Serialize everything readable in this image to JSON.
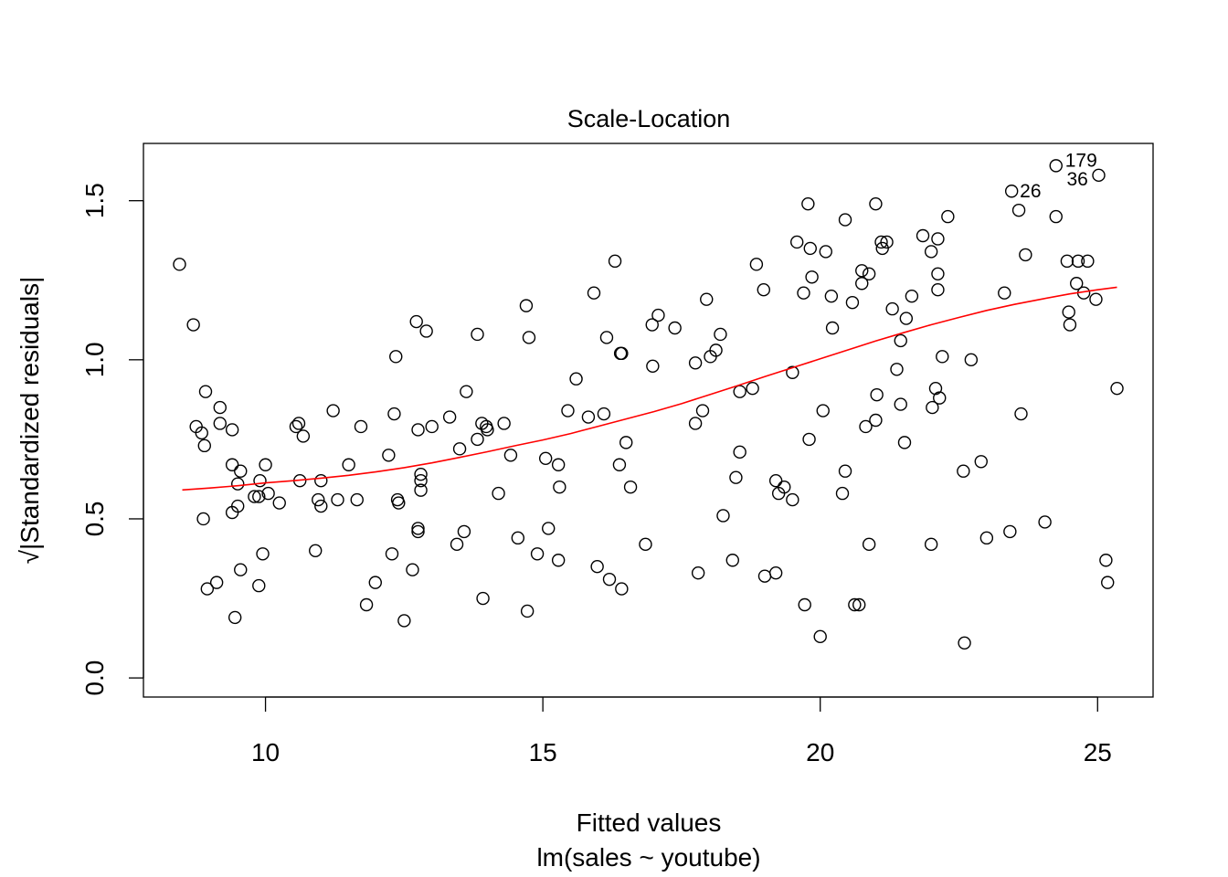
{
  "chart_data": {
    "type": "scatter",
    "title": "Scale-Location",
    "xlabel": "Fitted values",
    "xsublabel": "lm(sales ~ youtube)",
    "ylabel": "√|Standardized residuals|",
    "xlim": [
      7.8,
      26.0
    ],
    "ylim": [
      -0.06,
      1.68
    ],
    "xticks": [
      10,
      15,
      20,
      25
    ],
    "yticks": [
      0.0,
      0.5,
      1.0,
      1.5
    ],
    "xtick_labels": [
      "10",
      "15",
      "20",
      "25"
    ],
    "ytick_labels": [
      "0.0",
      "0.5",
      "1.0",
      "1.5"
    ],
    "grid": false,
    "points_color": "#000000",
    "smooth_color": "#ff0000",
    "points": [
      [
        8.45,
        1.3
      ],
      [
        8.7,
        1.11
      ],
      [
        8.75,
        0.79
      ],
      [
        8.85,
        0.77
      ],
      [
        8.88,
        0.5
      ],
      [
        8.9,
        0.73
      ],
      [
        8.92,
        0.9
      ],
      [
        8.95,
        0.28
      ],
      [
        9.12,
        0.3
      ],
      [
        9.18,
        0.85
      ],
      [
        9.18,
        0.8
      ],
      [
        9.4,
        0.78
      ],
      [
        9.4,
        0.67
      ],
      [
        9.4,
        0.52
      ],
      [
        9.45,
        0.19
      ],
      [
        9.5,
        0.61
      ],
      [
        9.5,
        0.54
      ],
      [
        9.55,
        0.65
      ],
      [
        9.55,
        0.34
      ],
      [
        9.8,
        0.57
      ],
      [
        9.88,
        0.57
      ],
      [
        9.88,
        0.29
      ],
      [
        9.9,
        0.62
      ],
      [
        9.95,
        0.39
      ],
      [
        10.0,
        0.67
      ],
      [
        10.05,
        0.58
      ],
      [
        10.25,
        0.55
      ],
      [
        10.55,
        0.79
      ],
      [
        10.6,
        0.8
      ],
      [
        10.62,
        0.62
      ],
      [
        10.68,
        0.76
      ],
      [
        10.9,
        0.4
      ],
      [
        10.95,
        0.56
      ],
      [
        11.0,
        0.62
      ],
      [
        11.0,
        0.54
      ],
      [
        11.22,
        0.84
      ],
      [
        11.3,
        0.56
      ],
      [
        11.5,
        0.67
      ],
      [
        11.65,
        0.56
      ],
      [
        11.72,
        0.79
      ],
      [
        11.82,
        0.23
      ],
      [
        11.98,
        0.3
      ],
      [
        12.22,
        0.7
      ],
      [
        12.28,
        0.39
      ],
      [
        12.32,
        0.83
      ],
      [
        12.35,
        1.01
      ],
      [
        12.38,
        0.56
      ],
      [
        12.4,
        0.55
      ],
      [
        12.5,
        0.18
      ],
      [
        12.65,
        0.34
      ],
      [
        12.72,
        1.12
      ],
      [
        12.75,
        0.78
      ],
      [
        12.75,
        0.47
      ],
      [
        12.75,
        0.46
      ],
      [
        12.8,
        0.64
      ],
      [
        12.8,
        0.62
      ],
      [
        12.8,
        0.59
      ],
      [
        12.9,
        1.09
      ],
      [
        13.0,
        0.79
      ],
      [
        13.32,
        0.82
      ],
      [
        13.45,
        0.42
      ],
      [
        13.5,
        0.72
      ],
      [
        13.58,
        0.46
      ],
      [
        13.62,
        0.9
      ],
      [
        13.82,
        1.08
      ],
      [
        13.82,
        0.75
      ],
      [
        13.9,
        0.8
      ],
      [
        13.92,
        0.25
      ],
      [
        13.98,
        0.79
      ],
      [
        14.0,
        0.78
      ],
      [
        14.2,
        0.58
      ],
      [
        14.3,
        0.8
      ],
      [
        14.42,
        0.7
      ],
      [
        14.55,
        0.44
      ],
      [
        14.7,
        1.17
      ],
      [
        14.72,
        0.21
      ],
      [
        14.75,
        1.07
      ],
      [
        14.9,
        0.39
      ],
      [
        15.05,
        0.69
      ],
      [
        15.1,
        0.47
      ],
      [
        15.28,
        0.37
      ],
      [
        15.28,
        0.67
      ],
      [
        15.3,
        0.6
      ],
      [
        15.45,
        0.84
      ],
      [
        15.6,
        0.94
      ],
      [
        15.82,
        0.82
      ],
      [
        15.92,
        1.21
      ],
      [
        15.98,
        0.35
      ],
      [
        16.1,
        0.83
      ],
      [
        16.15,
        1.07
      ],
      [
        16.2,
        0.31
      ],
      [
        16.3,
        1.31
      ],
      [
        16.38,
        0.67
      ],
      [
        16.4,
        1.02
      ],
      [
        16.42,
        1.02
      ],
      [
        16.42,
        0.28
      ],
      [
        16.5,
        0.74
      ],
      [
        16.58,
        0.6
      ],
      [
        16.85,
        0.42
      ],
      [
        16.97,
        1.11
      ],
      [
        16.98,
        0.98
      ],
      [
        17.08,
        1.14
      ],
      [
        17.38,
        1.1
      ],
      [
        17.75,
        0.99
      ],
      [
        17.75,
        0.8
      ],
      [
        17.8,
        0.33
      ],
      [
        17.88,
        0.84
      ],
      [
        17.95,
        1.19
      ],
      [
        18.02,
        1.01
      ],
      [
        18.12,
        1.03
      ],
      [
        18.2,
        1.08
      ],
      [
        18.25,
        0.51
      ],
      [
        18.42,
        0.37
      ],
      [
        18.48,
        0.63
      ],
      [
        18.55,
        0.9
      ],
      [
        18.55,
        0.71
      ],
      [
        18.78,
        0.91
      ],
      [
        18.85,
        1.3
      ],
      [
        18.98,
        1.22
      ],
      [
        19.0,
        0.32
      ],
      [
        19.2,
        0.62
      ],
      [
        19.2,
        0.33
      ],
      [
        19.25,
        0.58
      ],
      [
        19.35,
        0.6
      ],
      [
        19.5,
        0.96
      ],
      [
        19.5,
        0.56
      ],
      [
        19.58,
        1.37
      ],
      [
        19.7,
        1.21
      ],
      [
        19.72,
        0.23
      ],
      [
        19.78,
        1.49
      ],
      [
        19.8,
        0.75
      ],
      [
        19.82,
        1.35
      ],
      [
        19.85,
        1.26
      ],
      [
        20.0,
        0.13
      ],
      [
        20.05,
        0.84
      ],
      [
        20.1,
        1.34
      ],
      [
        20.2,
        1.2
      ],
      [
        20.22,
        1.1
      ],
      [
        20.4,
        0.58
      ],
      [
        20.45,
        1.44
      ],
      [
        20.45,
        0.65
      ],
      [
        20.58,
        1.18
      ],
      [
        20.62,
        0.23
      ],
      [
        20.7,
        0.23
      ],
      [
        20.75,
        1.28
      ],
      [
        20.75,
        1.24
      ],
      [
        20.82,
        0.79
      ],
      [
        20.88,
        1.27
      ],
      [
        20.88,
        0.42
      ],
      [
        21.0,
        1.49
      ],
      [
        21.0,
        0.81
      ],
      [
        21.02,
        0.89
      ],
      [
        21.1,
        1.37
      ],
      [
        21.12,
        1.35
      ],
      [
        21.2,
        1.37
      ],
      [
        21.3,
        1.16
      ],
      [
        21.38,
        0.97
      ],
      [
        21.45,
        1.06
      ],
      [
        21.45,
        0.86
      ],
      [
        21.52,
        0.74
      ],
      [
        21.55,
        1.13
      ],
      [
        21.65,
        1.2
      ],
      [
        21.85,
        1.39
      ],
      [
        22.0,
        1.34
      ],
      [
        22.0,
        0.42
      ],
      [
        22.02,
        0.85
      ],
      [
        22.08,
        0.91
      ],
      [
        22.12,
        1.38
      ],
      [
        22.12,
        1.27
      ],
      [
        22.12,
        1.22
      ],
      [
        22.15,
        0.88
      ],
      [
        22.2,
        1.01
      ],
      [
        22.3,
        1.45
      ],
      [
        22.58,
        0.65
      ],
      [
        22.6,
        0.11
      ],
      [
        22.72,
        1.0
      ],
      [
        22.9,
        0.68
      ],
      [
        23.0,
        0.44
      ],
      [
        23.32,
        1.21
      ],
      [
        23.42,
        0.46
      ],
      [
        23.45,
        1.53
      ],
      [
        23.58,
        1.47
      ],
      [
        23.62,
        0.83
      ],
      [
        23.7,
        1.33
      ],
      [
        24.05,
        0.49
      ],
      [
        24.25,
        1.61
      ],
      [
        24.25,
        1.45
      ],
      [
        24.45,
        1.31
      ],
      [
        24.48,
        1.15
      ],
      [
        24.5,
        1.11
      ],
      [
        24.62,
        1.24
      ],
      [
        24.65,
        1.31
      ],
      [
        24.75,
        1.21
      ],
      [
        24.82,
        1.31
      ],
      [
        24.97,
        1.19
      ],
      [
        25.02,
        1.58
      ],
      [
        25.15,
        0.37
      ],
      [
        25.18,
        0.3
      ],
      [
        25.35,
        0.91
      ]
    ],
    "smooth_line": [
      [
        8.5,
        0.591
      ],
      [
        9.0,
        0.597
      ],
      [
        9.5,
        0.604
      ],
      [
        10.0,
        0.613
      ],
      [
        10.5,
        0.62
      ],
      [
        11.0,
        0.628
      ],
      [
        11.5,
        0.637
      ],
      [
        12.0,
        0.648
      ],
      [
        12.5,
        0.661
      ],
      [
        13.0,
        0.676
      ],
      [
        13.5,
        0.693
      ],
      [
        14.0,
        0.711
      ],
      [
        14.5,
        0.73
      ],
      [
        15.0,
        0.748
      ],
      [
        15.5,
        0.768
      ],
      [
        16.0,
        0.791
      ],
      [
        16.5,
        0.814
      ],
      [
        17.0,
        0.837
      ],
      [
        17.5,
        0.862
      ],
      [
        18.0,
        0.89
      ],
      [
        18.5,
        0.918
      ],
      [
        19.0,
        0.947
      ],
      [
        19.5,
        0.975
      ],
      [
        20.0,
        1.003
      ],
      [
        20.5,
        1.031
      ],
      [
        21.0,
        1.059
      ],
      [
        21.5,
        1.085
      ],
      [
        22.0,
        1.11
      ],
      [
        22.5,
        1.133
      ],
      [
        23.0,
        1.155
      ],
      [
        23.5,
        1.174
      ],
      [
        24.0,
        1.191
      ],
      [
        24.5,
        1.207
      ],
      [
        25.0,
        1.22
      ],
      [
        25.35,
        1.228
      ]
    ],
    "annotations": [
      {
        "x": 24.25,
        "y": 1.61,
        "label": "179"
      },
      {
        "x": 25.02,
        "y": 1.58,
        "label": "36"
      },
      {
        "x": 23.45,
        "y": 1.53,
        "label": "26"
      }
    ]
  }
}
